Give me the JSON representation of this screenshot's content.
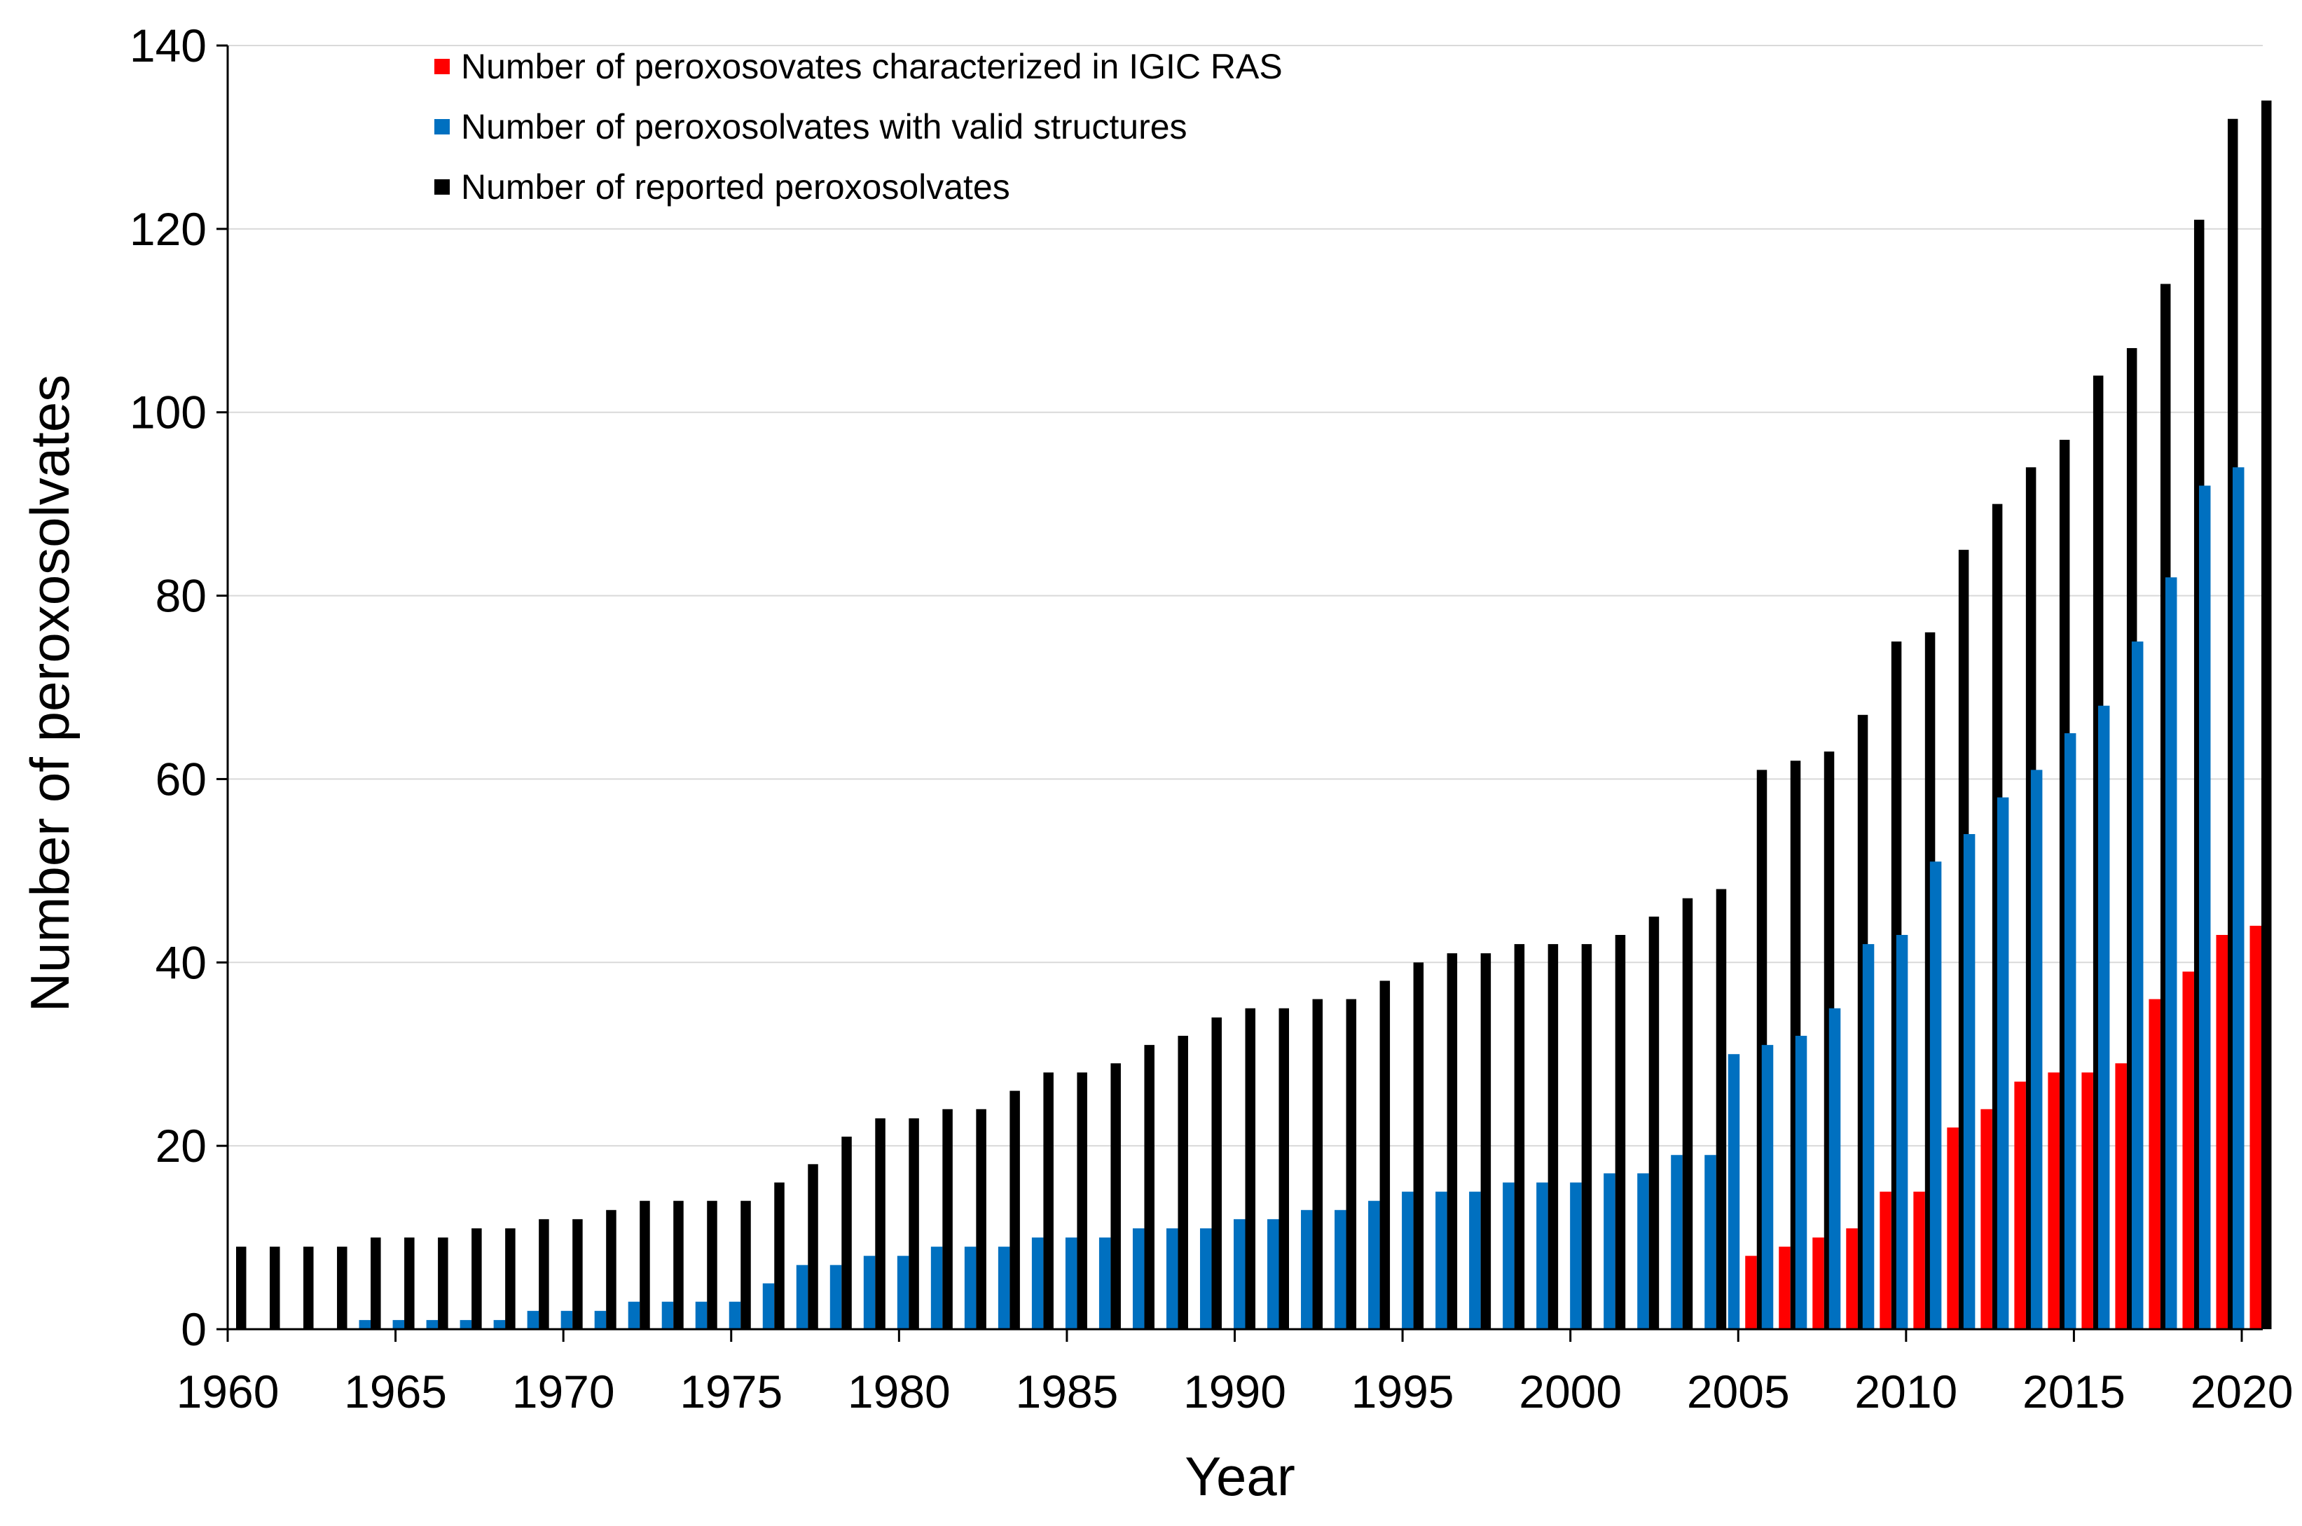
{
  "chart_data": {
    "type": "bar",
    "title": "",
    "xlabel": "Year",
    "ylabel": "Number of peroxosolvates",
    "ylim": [
      0,
      140
    ],
    "yticks": [
      0,
      20,
      40,
      60,
      80,
      100,
      120,
      140
    ],
    "xtick_labels": [
      "1960",
      "1965",
      "1970",
      "1975",
      "1980",
      "1985",
      "1990",
      "1995",
      "2000",
      "2005",
      "2010",
      "2015",
      "2020"
    ],
    "grid": true,
    "legend_position": "top-left",
    "categories": [
      "1960",
      "1961",
      "1962",
      "1963",
      "1964",
      "1965",
      "1966",
      "1967",
      "1968",
      "1969",
      "1970",
      "1971",
      "1972",
      "1973",
      "1974",
      "1975",
      "1976",
      "1977",
      "1978",
      "1979",
      "1980",
      "1981",
      "1982",
      "1983",
      "1984",
      "1985",
      "1986",
      "1987",
      "1988",
      "1989",
      "1990",
      "1991",
      "1992",
      "1993",
      "1994",
      "1995",
      "1996",
      "1997",
      "1998",
      "1999",
      "2000",
      "2001",
      "2002",
      "2003",
      "2004",
      "2005",
      "2006",
      "2007",
      "2008",
      "2009",
      "2010",
      "2011",
      "2012",
      "2013",
      "2014",
      "2015",
      "2016",
      "2017",
      "2018",
      "2019",
      "2020"
    ],
    "series": [
      {
        "name": "Number of peroxosovates characterized in IGIC RAS",
        "color": "#FF0000",
        "values": [
          0,
          0,
          0,
          0,
          0,
          0,
          0,
          0,
          0,
          0,
          0,
          0,
          0,
          0,
          0,
          0,
          0,
          0,
          0,
          0,
          0,
          0,
          0,
          0,
          0,
          0,
          0,
          0,
          0,
          0,
          0,
          0,
          0,
          0,
          0,
          0,
          0,
          0,
          0,
          0,
          0,
          0,
          0,
          0,
          0,
          8,
          9,
          10,
          11,
          15,
          15,
          22,
          24,
          27,
          28,
          28,
          29,
          36,
          39,
          43,
          44
        ]
      },
      {
        "name": "Number of peroxosolvates with valid structures",
        "color": "#0070C0",
        "values": [
          0,
          0,
          0,
          0,
          1,
          1,
          1,
          1,
          1,
          2,
          2,
          2,
          3,
          3,
          3,
          3,
          5,
          7,
          7,
          8,
          8,
          9,
          9,
          9,
          10,
          10,
          10,
          11,
          11,
          11,
          12,
          12,
          13,
          13,
          14,
          15,
          15,
          15,
          16,
          16,
          16,
          17,
          17,
          19,
          19,
          30,
          31,
          32,
          35,
          42,
          43,
          51,
          54,
          58,
          61,
          65,
          68,
          75,
          82,
          92,
          94
        ]
      },
      {
        "name": "Number of reported peroxosolvates",
        "color": "#000000",
        "values": [
          9,
          9,
          9,
          9,
          10,
          10,
          10,
          11,
          11,
          12,
          12,
          13,
          14,
          14,
          14,
          14,
          16,
          18,
          21,
          23,
          23,
          24,
          24,
          26,
          28,
          28,
          29,
          31,
          32,
          34,
          35,
          35,
          36,
          36,
          38,
          40,
          41,
          41,
          42,
          42,
          42,
          43,
          45,
          47,
          48,
          61,
          62,
          63,
          67,
          75,
          76,
          85,
          90,
          94,
          97,
          104,
          107,
          114,
          121,
          132,
          134
        ]
      }
    ]
  }
}
